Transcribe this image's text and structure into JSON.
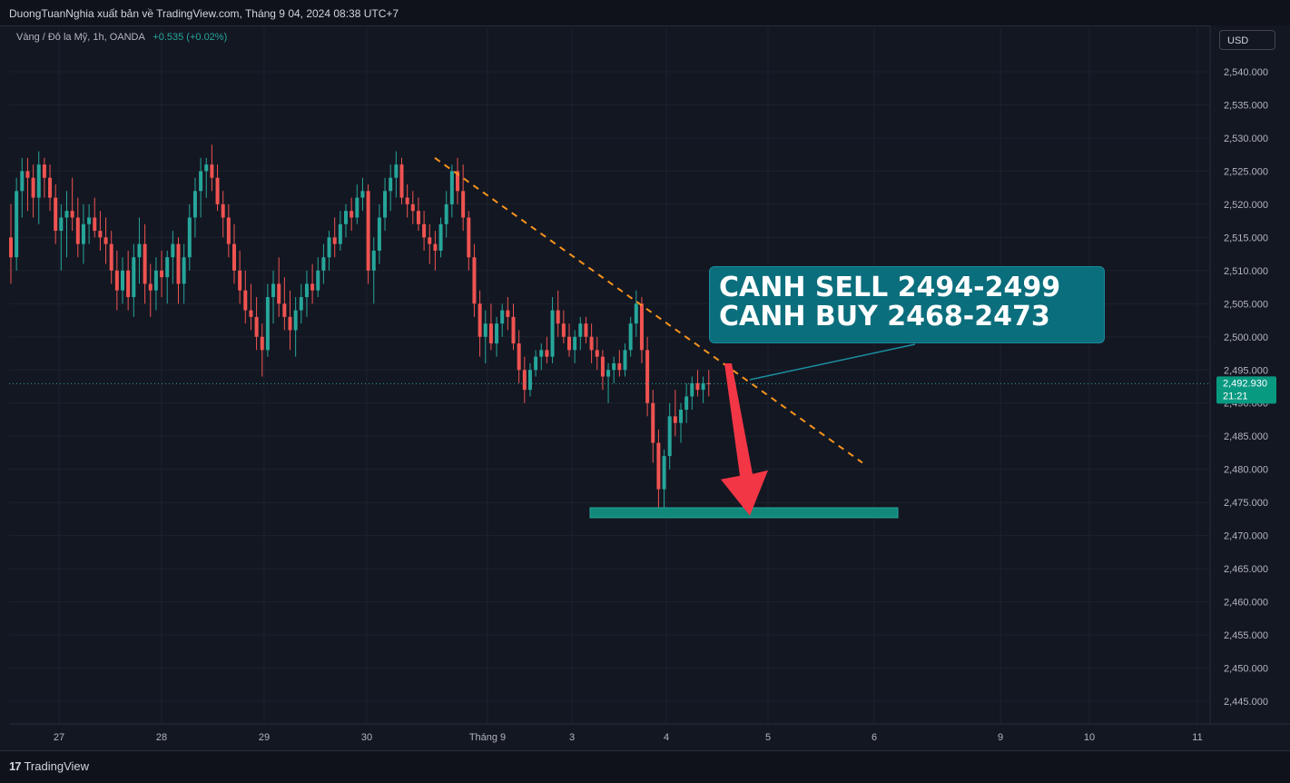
{
  "header": {
    "publisher_text": "DuongTuanNghia xuất bản về TradingView.com, Tháng 9 04, 2024 08:38 UTC+7"
  },
  "legend": {
    "symbol": "Vàng / Đô la Mỹ, 1h, OANDA",
    "change": "+0.535 (+0.02%)"
  },
  "currency_button": "USD",
  "price_label": {
    "price": "2,492.930",
    "countdown": "21:21"
  },
  "annotation": {
    "line1": "CANH SELL 2494-2499",
    "line2": "CANH BUY 2468-2473"
  },
  "footer": {
    "logo": "17",
    "brand": "TradingView"
  },
  "colors": {
    "background": "#131722",
    "up": "#26a69a",
    "down": "#ef5350",
    "trendline": "#f7931e",
    "arrow": "#f23645",
    "zone": "#11897a",
    "callout": "#0b6e7c"
  },
  "chart_data": {
    "type": "candlestick",
    "symbol": "XAUUSD",
    "timeframe": "1h",
    "y_axis": {
      "ylim": [
        2441,
        2546
      ],
      "ticks": [
        "2,540.000",
        "2,535.000",
        "2,530.000",
        "2,525.000",
        "2,520.000",
        "2,515.000",
        "2,510.000",
        "2,505.000",
        "2,500.000",
        "2,495.000",
        "2,490.000",
        "2,485.000",
        "2,480.000",
        "2,475.000",
        "2,470.000",
        "2,465.000",
        "2,460.000",
        "2,455.000",
        "2,450.000",
        "2,445.000"
      ]
    },
    "x_axis": {
      "ticks": [
        "27",
        "28",
        "29",
        "30",
        "Tháng 9",
        "3",
        "4",
        "5",
        "6",
        "9",
        "10",
        "11"
      ]
    },
    "last_price": 2492.93,
    "ohlc": [
      [
        2515.0,
        2520.0,
        2508.0,
        2512.0
      ],
      [
        2512.0,
        2524.0,
        2510.0,
        2522.0
      ],
      [
        2522.0,
        2527.0,
        2518.0,
        2525.0
      ],
      [
        2525.0,
        2527.0,
        2519.0,
        2524.0
      ],
      [
        2524.0,
        2526.0,
        2518.0,
        2521.0
      ],
      [
        2521.0,
        2528.0,
        2517.0,
        2526.0
      ],
      [
        2526.0,
        2527.0,
        2521.0,
        2524.0
      ],
      [
        2524.0,
        2526.0,
        2519.0,
        2521.0
      ],
      [
        2521.0,
        2523.0,
        2514.0,
        2516.0
      ],
      [
        2516.0,
        2520.0,
        2510.0,
        2518.0
      ],
      [
        2518.0,
        2522.0,
        2512.0,
        2519.0
      ],
      [
        2519.0,
        2524.0,
        2516.0,
        2518.0
      ],
      [
        2518.0,
        2521.0,
        2512.0,
        2514.0
      ],
      [
        2514.0,
        2520.0,
        2511.0,
        2517.0
      ],
      [
        2517.0,
        2520.0,
        2514.0,
        2518.0
      ],
      [
        2518.0,
        2521.0,
        2515.0,
        2516.0
      ],
      [
        2516.0,
        2519.0,
        2513.0,
        2515.0
      ],
      [
        2515.0,
        2518.0,
        2511.0,
        2514.0
      ],
      [
        2514.0,
        2516.0,
        2508.0,
        2510.0
      ],
      [
        2510.0,
        2513.0,
        2504.0,
        2507.0
      ],
      [
        2507.0,
        2512.0,
        2505.0,
        2510.0
      ],
      [
        2510.0,
        2513.0,
        2504.0,
        2506.0
      ],
      [
        2506.0,
        2514.0,
        2503.0,
        2512.0
      ],
      [
        2512.0,
        2518.0,
        2508.0,
        2514.0
      ],
      [
        2514.0,
        2517.0,
        2505.0,
        2508.0
      ],
      [
        2508.0,
        2511.0,
        2503.0,
        2507.0
      ],
      [
        2507.0,
        2512.0,
        2504.0,
        2510.0
      ],
      [
        2510.0,
        2513.0,
        2506.0,
        2509.0
      ],
      [
        2509.0,
        2513.0,
        2505.0,
        2512.0
      ],
      [
        2512.0,
        2516.0,
        2508.0,
        2514.0
      ],
      [
        2514.0,
        2515.0,
        2505.0,
        2508.0
      ],
      [
        2508.0,
        2514.0,
        2505.0,
        2512.0
      ],
      [
        2512.0,
        2520.0,
        2510.0,
        2518.0
      ],
      [
        2518.0,
        2524.0,
        2515.0,
        2522.0
      ],
      [
        2522.0,
        2527.0,
        2518.0,
        2525.0
      ],
      [
        2525.0,
        2527.0,
        2521.0,
        2526.0
      ],
      [
        2526.0,
        2529.0,
        2522.0,
        2524.0
      ],
      [
        2524.0,
        2526.0,
        2519.0,
        2520.0
      ],
      [
        2520.0,
        2522.0,
        2515.0,
        2518.0
      ],
      [
        2518.0,
        2520.0,
        2512.0,
        2514.0
      ],
      [
        2514.0,
        2517.0,
        2508.0,
        2510.0
      ],
      [
        2510.0,
        2513.0,
        2505.0,
        2507.0
      ],
      [
        2507.0,
        2510.0,
        2502.0,
        2504.0
      ],
      [
        2504.0,
        2508.0,
        2501.0,
        2503.0
      ],
      [
        2503.0,
        2506.0,
        2498.0,
        2500.0
      ],
      [
        2500.0,
        2502.0,
        2494.0,
        2498.0
      ],
      [
        2498.0,
        2508.0,
        2497.0,
        2506.0
      ],
      [
        2506.0,
        2510.0,
        2502.0,
        2508.0
      ],
      [
        2508.0,
        2512.0,
        2503.0,
        2505.0
      ],
      [
        2505.0,
        2509.0,
        2501.0,
        2503.0
      ],
      [
        2503.0,
        2507.0,
        2498.0,
        2501.0
      ],
      [
        2501.0,
        2506.0,
        2497.0,
        2504.0
      ],
      [
        2504.0,
        2508.0,
        2502.0,
        2506.0
      ],
      [
        2506.0,
        2510.0,
        2503.0,
        2508.0
      ],
      [
        2508.0,
        2511.0,
        2505.0,
        2507.0
      ],
      [
        2507.0,
        2512.0,
        2506.0,
        2510.0
      ],
      [
        2510.0,
        2514.0,
        2508.0,
        2512.0
      ],
      [
        2512.0,
        2516.0,
        2510.0,
        2515.0
      ],
      [
        2515.0,
        2518.0,
        2512.0,
        2514.0
      ],
      [
        2514.0,
        2519.0,
        2513.0,
        2517.0
      ],
      [
        2517.0,
        2520.0,
        2515.0,
        2519.0
      ],
      [
        2519.0,
        2521.0,
        2516.0,
        2518.0
      ],
      [
        2518.0,
        2523.0,
        2517.0,
        2521.0
      ],
      [
        2521.0,
        2524.0,
        2519.0,
        2522.0
      ],
      [
        2522.0,
        2523.0,
        2508.0,
        2510.0
      ],
      [
        2510.0,
        2515.0,
        2505.0,
        2513.0
      ],
      [
        2513.0,
        2520.0,
        2511.0,
        2518.0
      ],
      [
        2518.0,
        2524.0,
        2516.0,
        2522.0
      ],
      [
        2522.0,
        2526.0,
        2519.0,
        2524.0
      ],
      [
        2524.0,
        2528.0,
        2521.0,
        2526.0
      ],
      [
        2526.0,
        2527.0,
        2520.0,
        2521.0
      ],
      [
        2521.0,
        2523.0,
        2518.0,
        2520.0
      ],
      [
        2520.0,
        2522.0,
        2517.0,
        2519.0
      ],
      [
        2519.0,
        2521.0,
        2516.0,
        2517.0
      ],
      [
        2517.0,
        2519.0,
        2513.0,
        2515.0
      ],
      [
        2515.0,
        2517.0,
        2511.0,
        2514.0
      ],
      [
        2514.0,
        2516.0,
        2510.0,
        2513.0
      ],
      [
        2513.0,
        2518.0,
        2512.0,
        2517.0
      ],
      [
        2517.0,
        2522.0,
        2515.0,
        2520.0
      ],
      [
        2520.0,
        2526.0,
        2518.0,
        2525.0
      ],
      [
        2525.0,
        2527.0,
        2520.0,
        2522.0
      ],
      [
        2522.0,
        2526.0,
        2516.0,
        2518.0
      ],
      [
        2518.0,
        2519.0,
        2510.0,
        2512.0
      ],
      [
        2512.0,
        2514.0,
        2503.0,
        2505.0
      ],
      [
        2505.0,
        2507.0,
        2497.0,
        2500.0
      ],
      [
        2500.0,
        2504.0,
        2496.0,
        2502.0
      ],
      [
        2502.0,
        2505.0,
        2498.0,
        2499.0
      ],
      [
        2499.0,
        2503.0,
        2497.0,
        2502.0
      ],
      [
        2502.0,
        2505.0,
        2500.0,
        2504.0
      ],
      [
        2504.0,
        2506.0,
        2501.0,
        2503.0
      ],
      [
        2503.0,
        2505.0,
        2498.0,
        2499.0
      ],
      [
        2499.0,
        2501.0,
        2493.0,
        2495.0
      ],
      [
        2495.0,
        2497.0,
        2490.0,
        2492.0
      ],
      [
        2492.0,
        2496.0,
        2491.0,
        2495.0
      ],
      [
        2495.0,
        2498.0,
        2494.0,
        2497.0
      ],
      [
        2497.0,
        2499.0,
        2495.0,
        2498.0
      ],
      [
        2498.0,
        2500.0,
        2496.0,
        2497.0
      ],
      [
        2497.0,
        2506.0,
        2496.0,
        2504.0
      ],
      [
        2504.0,
        2507.0,
        2500.0,
        2502.0
      ],
      [
        2502.0,
        2504.0,
        2499.0,
        2500.0
      ],
      [
        2500.0,
        2502.0,
        2497.0,
        2498.0
      ],
      [
        2498.0,
        2501.0,
        2496.0,
        2500.0
      ],
      [
        2500.0,
        2503.0,
        2498.0,
        2502.0
      ],
      [
        2502.0,
        2503.0,
        2499.0,
        2500.0
      ],
      [
        2500.0,
        2502.0,
        2496.0,
        2498.0
      ],
      [
        2498.0,
        2500.0,
        2495.0,
        2497.0
      ],
      [
        2497.0,
        2498.0,
        2492.0,
        2494.0
      ],
      [
        2494.0,
        2496.0,
        2490.0,
        2495.0
      ],
      [
        2495.0,
        2497.0,
        2493.0,
        2496.0
      ],
      [
        2496.0,
        2498.0,
        2494.0,
        2495.0
      ],
      [
        2495.0,
        2499.0,
        2494.0,
        2498.0
      ],
      [
        2498.0,
        2503.0,
        2497.0,
        2502.0
      ],
      [
        2502.0,
        2507.0,
        2500.0,
        2505.0
      ],
      [
        2505.0,
        2506.0,
        2496.0,
        2498.0
      ],
      [
        2498.0,
        2500.0,
        2488.0,
        2490.0
      ],
      [
        2490.0,
        2492.0,
        2481.0,
        2484.0
      ],
      [
        2484.0,
        2486.0,
        2474.0,
        2477.0
      ],
      [
        2477.0,
        2483.0,
        2473.0,
        2482.0
      ],
      [
        2482.0,
        2490.0,
        2480.0,
        2488.0
      ],
      [
        2488.0,
        2492.0,
        2485.0,
        2487.0
      ],
      [
        2487.0,
        2490.0,
        2484.0,
        2489.0
      ],
      [
        2489.0,
        2493.0,
        2487.0,
        2491.0
      ],
      [
        2491.0,
        2494.0,
        2489.0,
        2493.0
      ],
      [
        2493.0,
        2495.0,
        2491.0,
        2492.0
      ],
      [
        2492.0,
        2494.0,
        2490.0,
        2493.0
      ],
      [
        2493.0,
        2495.0,
        2491.0,
        2492.93
      ]
    ],
    "drawings": {
      "trendline": {
        "from_price": 2527.0,
        "to_price": 2481.0
      },
      "support_zone": {
        "low": 2472.7,
        "high": 2474.2
      },
      "arrow": {
        "from_price": 2496.0,
        "to_price": 2473.0
      }
    }
  }
}
